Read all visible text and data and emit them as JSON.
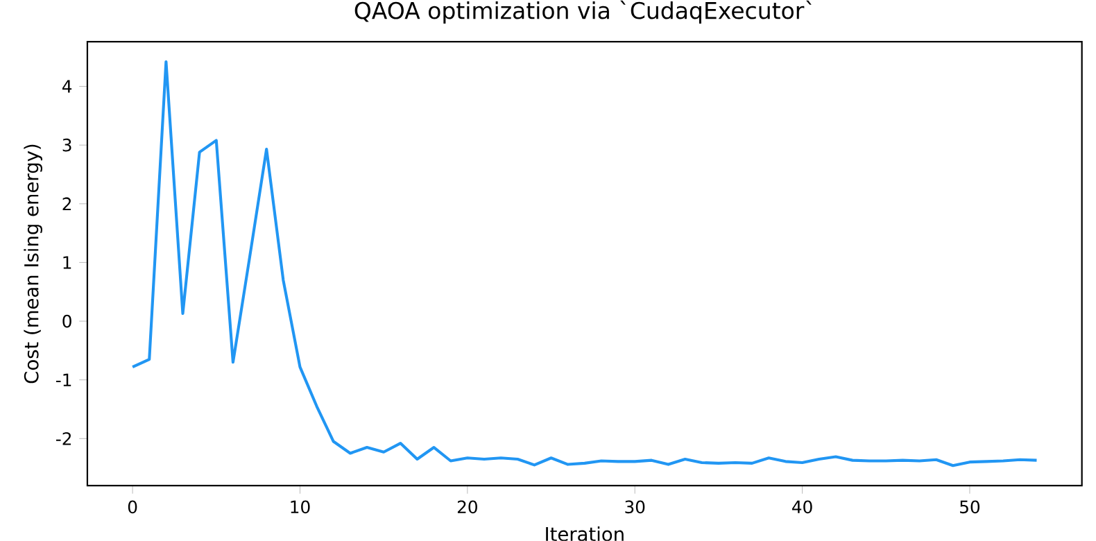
{
  "chart_data": {
    "type": "line",
    "title": "QAOA optimization via `CudaqExecutor`",
    "xlabel": "Iteration",
    "ylabel": "Cost (mean Ising energy)",
    "x": [
      0,
      1,
      2,
      3,
      4,
      5,
      6,
      7,
      8,
      9,
      10,
      11,
      12,
      13,
      14,
      15,
      16,
      17,
      18,
      19,
      20,
      21,
      22,
      23,
      24,
      25,
      26,
      27,
      28,
      29,
      30,
      31,
      32,
      33,
      34,
      35,
      36,
      37,
      38,
      39,
      40,
      41,
      42,
      43,
      44,
      45,
      46,
      47,
      48,
      49,
      50,
      51,
      52,
      53,
      54
    ],
    "series": [
      {
        "color": "#2196f3",
        "values": [
          -0.78,
          -0.65,
          4.42,
          0.13,
          2.88,
          3.08,
          -0.7,
          1.1,
          2.93,
          0.7,
          -0.78,
          -1.45,
          -2.05,
          -2.25,
          -2.15,
          -2.23,
          -2.08,
          -2.35,
          -2.15,
          -2.38,
          -2.33,
          -2.35,
          -2.33,
          -2.35,
          -2.45,
          -2.33,
          -2.44,
          -2.42,
          -2.38,
          -2.39,
          -2.39,
          -2.37,
          -2.44,
          -2.35,
          -2.41,
          -2.42,
          -2.41,
          -2.42,
          -2.33,
          -2.39,
          -2.41,
          -2.35,
          -2.31,
          -2.37,
          -2.38,
          -2.38,
          -2.37,
          -2.38,
          -2.36,
          -2.46,
          -2.4,
          -2.39,
          -2.38,
          -2.36,
          -2.37
        ]
      }
    ],
    "xlim": [
      -2.7,
      56.7
    ],
    "ylim": [
      -2.8,
      4.76
    ],
    "xticks": [
      0,
      10,
      20,
      30,
      40,
      50
    ],
    "yticks": [
      -2,
      -1,
      0,
      1,
      2,
      3,
      4
    ],
    "grid": false,
    "marker": "none",
    "line_style": "solid"
  }
}
